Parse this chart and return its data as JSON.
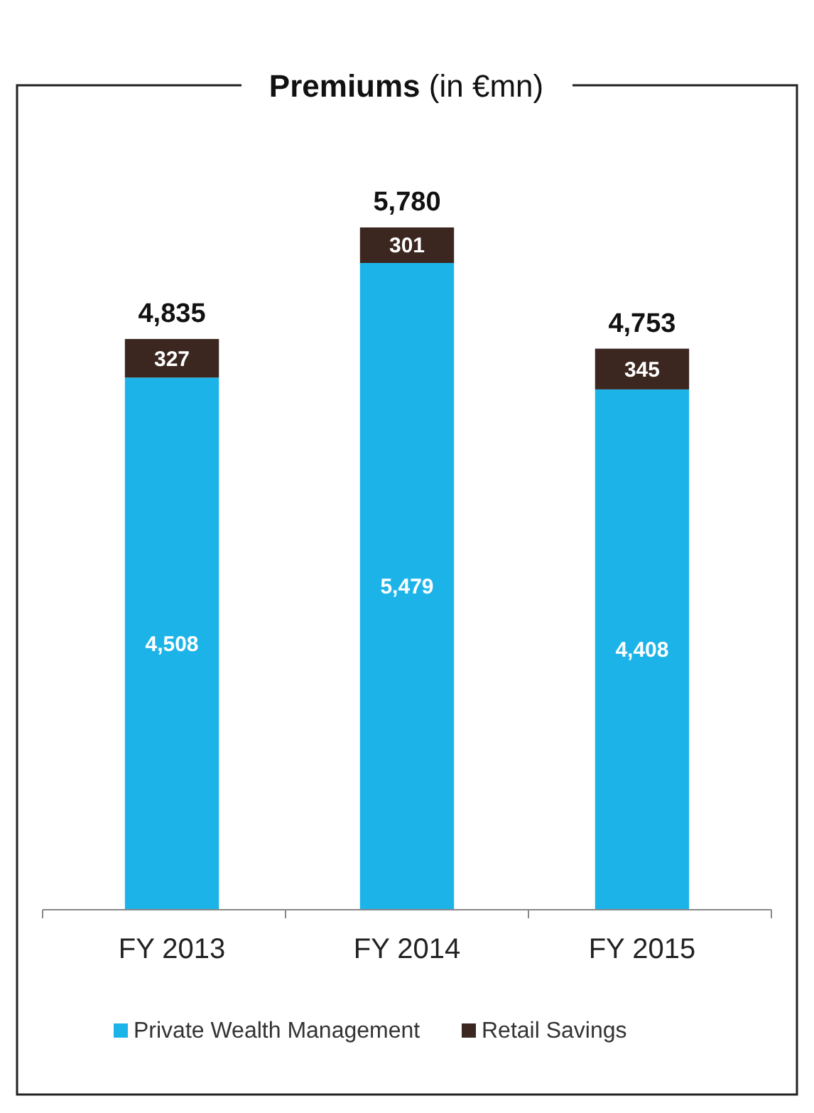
{
  "chart_data": {
    "type": "bar",
    "title": "Premiums (in €mn)",
    "categories": [
      "FY 2013",
      "FY 2014",
      "FY 2015"
    ],
    "stacked": true,
    "legend": "bottom",
    "series": [
      {
        "name": "Private Wealth Management",
        "color": "#1cb4e8",
        "values": [
          4508,
          5479,
          4408
        ],
        "value_labels": [
          "4,508",
          "5,479",
          "4,408"
        ]
      },
      {
        "name": "Retail Savings",
        "color": "#3b2620",
        "values": [
          327,
          301,
          345
        ],
        "value_labels": [
          "327",
          "301",
          "345"
        ]
      }
    ],
    "totals": [
      "4,835",
      "5,780",
      "4,753"
    ]
  }
}
